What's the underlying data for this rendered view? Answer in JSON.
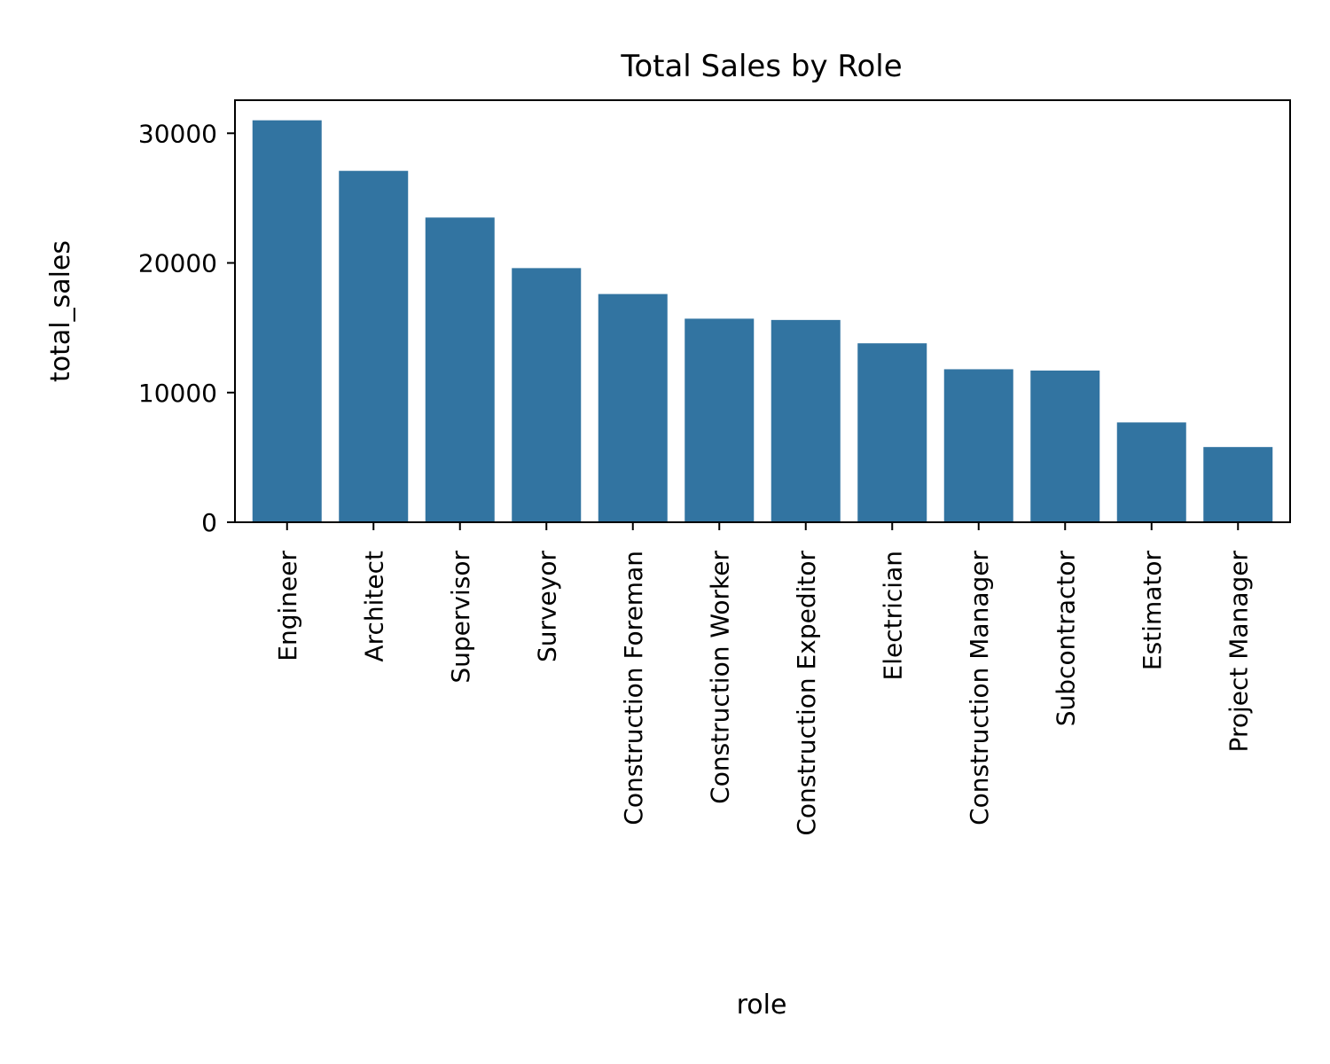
{
  "chart_data": {
    "type": "bar",
    "title": "Total Sales by Role",
    "xlabel": "role",
    "ylabel": "total_sales",
    "categories": [
      "Engineer",
      "Architect",
      "Supervisor",
      "Surveyor",
      "Construction Foreman",
      "Construction Worker",
      "Construction Expeditor",
      "Electrician",
      "Construction Manager",
      "Subcontractor",
      "Estimator",
      "Project Manager"
    ],
    "values": [
      31000,
      27100,
      23500,
      19600,
      17600,
      15700,
      15600,
      13800,
      11800,
      11700,
      7700,
      5800
    ],
    "ylim": [
      0,
      32550
    ],
    "yticks": [
      0,
      10000,
      20000,
      30000
    ],
    "grid": false,
    "legend": "none",
    "colors": {
      "bar": "#3274a1",
      "axis": "#000000",
      "background": "#ffffff"
    }
  }
}
